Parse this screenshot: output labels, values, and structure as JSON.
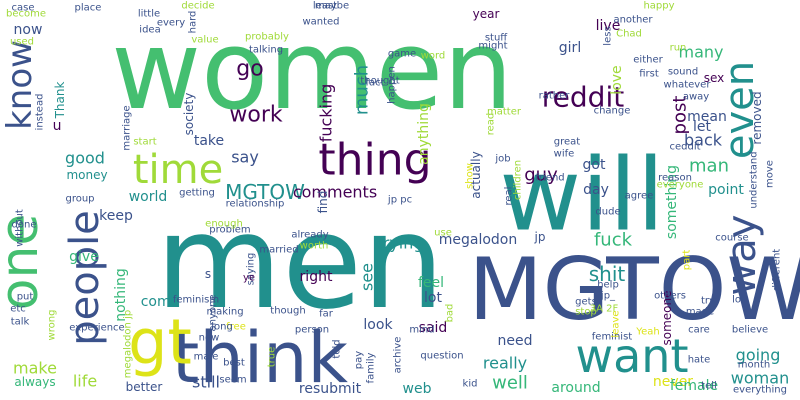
{
  "palette": {
    "green": "#44bf70",
    "teal": "#21908d",
    "navy": "#3b528b",
    "purple": "#440154",
    "lime": "#a0da39",
    "yellow": "#dde318",
    "mint": "#35b779",
    "blue": "#31688e"
  },
  "words": [
    "women",
    "men",
    "one",
    "will",
    "MGTOW",
    "think",
    "gt",
    "want",
    "thing",
    "people",
    "time",
    "know",
    "even",
    "way",
    "reddit",
    "go",
    "work",
    "fucking",
    "MGTOW",
    "comments",
    "much",
    "many",
    "sex",
    "love",
    "girl",
    "live",
    "post",
    "mean",
    "removed",
    "man",
    "guy",
    "got",
    "something",
    "good",
    "money",
    "say",
    "take",
    "society",
    "world",
    "see",
    "trying",
    "megalodon",
    "jp",
    "fuck",
    "nothing",
    "keep",
    "give",
    "come",
    "right",
    "lot",
    "feel",
    "said",
    "look",
    "shit",
    "need",
    "really",
    "well",
    "going",
    "woman",
    "make",
    "still",
    "life",
    "better",
    "resubmit",
    "web",
    "around",
    "never",
    "female",
    "always",
    "back",
    "let",
    "point",
    "day",
    "anything",
    "actually",
    "Thank",
    "year",
    "u",
    "now",
    "find",
    "someone",
    "s",
    "part",
    "Yeah",
    "show",
    "free",
    "long",
    "hate",
    "care",
    "believe",
    "feminist",
    "others",
    "leave",
    "done",
    "talk",
    "etc",
    "put",
    "without",
    "instead",
    "become",
    "used",
    "case",
    "place",
    "little",
    "every",
    "decide",
    "value",
    "idea",
    "hard",
    "talking",
    "probably",
    "least",
    "maybe",
    "wanted",
    "happy",
    "another",
    "stuff",
    "might",
    "Chad",
    "less",
    "run",
    "either",
    "first",
    "sound",
    "whatever",
    "away",
    "change",
    "rather",
    "matter",
    "read",
    "job",
    "great",
    "ceddit",
    "move",
    "reason",
    "everyone",
    "agree",
    "children",
    "real",
    "dude",
    "wife",
    "friend",
    "use",
    "already",
    "worth",
    "married",
    "problem",
    "relationship",
    "getting",
    "start",
    "marriage",
    "group",
    "experience",
    "feminism",
    "anyone",
    "making",
    "saying",
    "ye",
    "though",
    "new",
    "male",
    "best",
    "seem",
    "true",
    "told",
    "pay",
    "family",
    "archive",
    "kid",
    "question",
    "mind",
    "bad",
    "help",
    "3A 2F",
    "jp_",
    "gets",
    "stop",
    "made",
    "try",
    "lol",
    "course",
    "different",
    "understand",
    "month",
    "tell",
    "everything",
    "person",
    "far",
    "game",
    "thought",
    "fact",
    "word",
    "enough",
    "wrong",
    "happen",
    "megalodon jp",
    "jp pc"
  ]
}
